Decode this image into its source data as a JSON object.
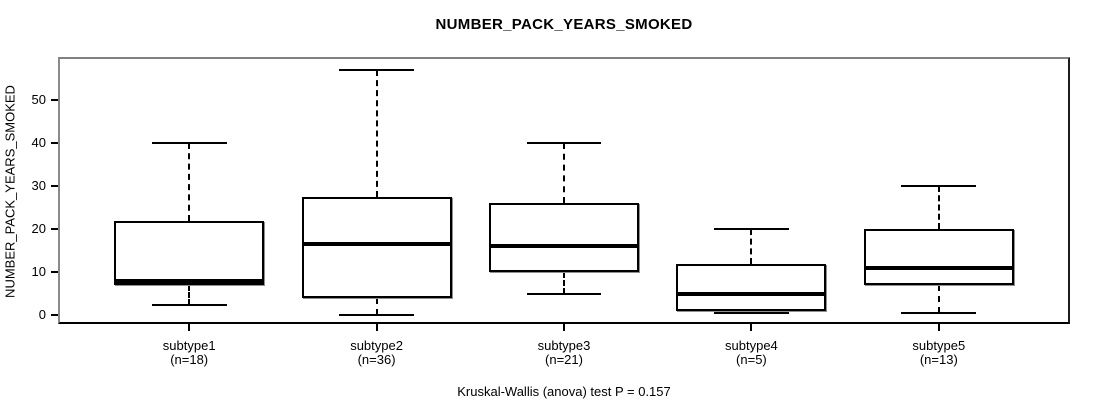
{
  "title": "NUMBER_PACK_YEARS_SMOKED",
  "colors": {
    "background": "#ffffff",
    "box_fill": "#ffffff",
    "stroke": "#000000",
    "frame_shadow": "#818181",
    "text": "#000000"
  },
  "chart_data": {
    "type": "boxplot",
    "title": "NUMBER_PACK_YEARS_SMOKED",
    "ylabel": "NUMBER_PACK_YEARS_SMOKED",
    "xlabel": "",
    "categories": [
      "subtype1",
      "subtype2",
      "subtype3",
      "subtype4",
      "subtype5"
    ],
    "n_labels": [
      "(n=18)",
      "(n=36)",
      "(n=21)",
      "(n=5)",
      "(n=13)"
    ],
    "sample_sizes": [
      18,
      36,
      21,
      5,
      13
    ],
    "series": [
      {
        "name": "subtype1",
        "n": 18,
        "whisker_low": 2.5,
        "q1": 7,
        "median": 8,
        "q3": 22,
        "whisker_high": 40
      },
      {
        "name": "subtype2",
        "n": 36,
        "whisker_low": 0,
        "q1": 4,
        "median": 16.5,
        "q3": 27.5,
        "whisker_high": 57
      },
      {
        "name": "subtype3",
        "n": 21,
        "whisker_low": 5,
        "q1": 10,
        "median": 16,
        "q3": 26,
        "whisker_high": 40
      },
      {
        "name": "subtype4",
        "n": 5,
        "whisker_low": 0.5,
        "q1": 1,
        "median": 5,
        "q3": 12,
        "whisker_high": 20
      },
      {
        "name": "subtype5",
        "n": 13,
        "whisker_low": 0.5,
        "q1": 7,
        "median": 11,
        "q3": 20,
        "whisker_high": 30
      }
    ],
    "y_ticks": [
      0,
      10,
      20,
      30,
      40,
      50
    ],
    "ylim": [
      -2,
      60
    ],
    "grid": false,
    "legend": "none",
    "annotation": "Kruskal-Wallis (anova) test P = 0.157"
  }
}
